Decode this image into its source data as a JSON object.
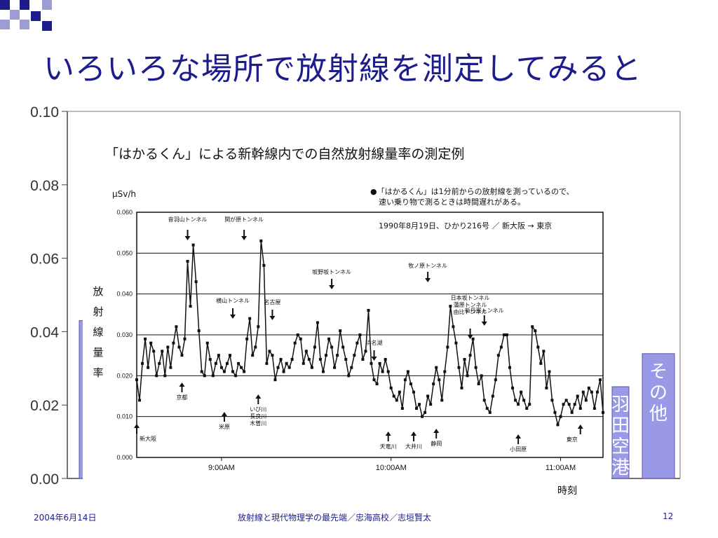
{
  "slide": {
    "title": "いろいろな場所で放射線を測定してみると",
    "footer_date": "2004年6月14日",
    "footer_center": "放射線と現代物理学の最先端／忠海高校／志垣賢太",
    "page_number": "12",
    "accent_color": "#1c1c8c",
    "deco_colors": [
      "#1c1c8c",
      "#9d9dd6"
    ]
  },
  "chart_data": [
    {
      "type": "bar",
      "role": "background chart",
      "ylim": [
        0,
        0.1
      ],
      "yticks": [
        "0.00",
        "0.02",
        "0.04",
        "0.06",
        "0.08",
        "0.10"
      ],
      "bars": [
        {
          "value": 0.043,
          "label": ""
        },
        {
          "value": 0.025,
          "label": "羽田空港"
        },
        {
          "value": 0.034,
          "label": "その他"
        }
      ],
      "bar_color": "#9999e6",
      "grid": false
    },
    {
      "type": "line",
      "title": "「はかるくん」による新幹線内での自然放射線量率の測定例",
      "ylabel": "放射線量率",
      "yunit": "μSv/h",
      "xlabel": "時刻",
      "note_lines": [
        "●「はかるくん」は1分前からの放射線を測っているので、",
        "速い乗り物で測るときは時間遅れがある。"
      ],
      "run_label": "1990年8月19日、ひかり216号 ／ 新大阪 → 東京",
      "ylim": [
        0,
        0.06
      ],
      "yticks": [
        "0.000",
        "0.010",
        "0.020",
        "0.030",
        "0.040",
        "0.050",
        "0.060"
      ],
      "xlim": [
        "08:30",
        "11:15"
      ],
      "xticks": [
        {
          "time": "09:00",
          "label": "9:00AM"
        },
        {
          "time": "10:00",
          "label": "10:00AM"
        },
        {
          "time": "11:00",
          "label": "11:00AM"
        }
      ],
      "grid": true,
      "series": [
        {
          "points": [
            [
              "08:30",
              0.019
            ],
            [
              "08:31",
              0.014
            ],
            [
              "08:32",
              0.023
            ],
            [
              "08:33",
              0.029
            ],
            [
              "08:34",
              0.022
            ],
            [
              "08:35",
              0.028
            ],
            [
              "08:36",
              0.026
            ],
            [
              "08:37",
              0.02
            ],
            [
              "08:38",
              0.023
            ],
            [
              "08:39",
              0.026
            ],
            [
              "08:40",
              0.02
            ],
            [
              "08:41",
              0.027
            ],
            [
              "08:42",
              0.022
            ],
            [
              "08:43",
              0.028
            ],
            [
              "08:44",
              0.032
            ],
            [
              "08:45",
              0.027
            ],
            [
              "08:46",
              0.025
            ],
            [
              "08:47",
              0.029
            ],
            [
              "08:48",
              0.048
            ],
            [
              "08:49",
              0.037
            ],
            [
              "08:50",
              0.052
            ],
            [
              "08:51",
              0.043
            ],
            [
              "08:52",
              0.031
            ],
            [
              "08:53",
              0.021
            ],
            [
              "08:54",
              0.02
            ],
            [
              "08:55",
              0.028
            ],
            [
              "08:56",
              0.024
            ],
            [
              "08:57",
              0.02
            ],
            [
              "08:58",
              0.023
            ],
            [
              "08:59",
              0.025
            ],
            [
              "09:00",
              0.022
            ],
            [
              "09:01",
              0.021
            ],
            [
              "09:02",
              0.023
            ],
            [
              "09:03",
              0.025
            ],
            [
              "09:04",
              0.021
            ],
            [
              "09:05",
              0.02
            ],
            [
              "09:06",
              0.023
            ],
            [
              "09:07",
              0.022
            ],
            [
              "09:08",
              0.021
            ],
            [
              "09:09",
              0.029
            ],
            [
              "09:10",
              0.034
            ],
            [
              "09:11",
              0.025
            ],
            [
              "09:12",
              0.027
            ],
            [
              "09:13",
              0.032
            ],
            [
              "09:14",
              0.053
            ],
            [
              "09:15",
              0.047
            ],
            [
              "09:16",
              0.023
            ],
            [
              "09:17",
              0.026
            ],
            [
              "09:18",
              0.025
            ],
            [
              "09:19",
              0.019
            ],
            [
              "09:20",
              0.022
            ],
            [
              "09:21",
              0.024
            ],
            [
              "09:22",
              0.021
            ],
            [
              "09:23",
              0.023
            ],
            [
              "09:24",
              0.022
            ],
            [
              "09:25",
              0.024
            ],
            [
              "09:26",
              0.028
            ],
            [
              "09:27",
              0.03
            ],
            [
              "09:28",
              0.029
            ],
            [
              "09:29",
              0.023
            ],
            [
              "09:30",
              0.026
            ],
            [
              "09:31",
              0.024
            ],
            [
              "09:32",
              0.022
            ],
            [
              "09:33",
              0.027
            ],
            [
              "09:34",
              0.033
            ],
            [
              "09:35",
              0.024
            ],
            [
              "09:36",
              0.021
            ],
            [
              "09:37",
              0.025
            ],
            [
              "09:38",
              0.029
            ],
            [
              "09:39",
              0.027
            ],
            [
              "09:40",
              0.022
            ],
            [
              "09:41",
              0.025
            ],
            [
              "09:42",
              0.031
            ],
            [
              "09:43",
              0.027
            ],
            [
              "09:44",
              0.024
            ],
            [
              "09:45",
              0.02
            ],
            [
              "09:46",
              0.022
            ],
            [
              "09:47",
              0.025
            ],
            [
              "09:48",
              0.028
            ],
            [
              "09:49",
              0.03
            ],
            [
              "09:50",
              0.024
            ],
            [
              "09:51",
              0.026
            ],
            [
              "09:52",
              0.036
            ],
            [
              "09:53",
              0.023
            ],
            [
              "09:54",
              0.019
            ],
            [
              "09:55",
              0.018
            ],
            [
              "09:56",
              0.023
            ],
            [
              "09:57",
              0.021
            ],
            [
              "09:58",
              0.024
            ],
            [
              "09:59",
              0.021
            ],
            [
              "10:00",
              0.017
            ],
            [
              "10:01",
              0.015
            ],
            [
              "10:02",
              0.014
            ],
            [
              "10:03",
              0.016
            ],
            [
              "10:04",
              0.012
            ],
            [
              "10:05",
              0.019
            ],
            [
              "10:06",
              0.021
            ],
            [
              "10:07",
              0.018
            ],
            [
              "10:08",
              0.016
            ],
            [
              "10:09",
              0.012
            ],
            [
              "10:10",
              0.013
            ],
            [
              "10:11",
              0.01
            ],
            [
              "10:12",
              0.011
            ],
            [
              "10:13",
              0.015
            ],
            [
              "10:14",
              0.013
            ],
            [
              "10:15",
              0.018
            ],
            [
              "10:16",
              0.022
            ],
            [
              "10:17",
              0.019
            ],
            [
              "10:18",
              0.014
            ],
            [
              "10:19",
              0.021
            ],
            [
              "10:20",
              0.027
            ],
            [
              "10:21",
              0.037
            ],
            [
              "10:22",
              0.032
            ],
            [
              "10:23",
              0.028
            ],
            [
              "10:24",
              0.022
            ],
            [
              "10:25",
              0.017
            ],
            [
              "10:26",
              0.024
            ],
            [
              "10:27",
              0.02
            ],
            [
              "10:28",
              0.025
            ],
            [
              "10:29",
              0.029
            ],
            [
              "10:30",
              0.022
            ],
            [
              "10:31",
              0.018
            ],
            [
              "10:32",
              0.02
            ],
            [
              "10:33",
              0.014
            ],
            [
              "10:34",
              0.012
            ],
            [
              "10:35",
              0.011
            ],
            [
              "10:36",
              0.015
            ],
            [
              "10:37",
              0.019
            ],
            [
              "10:38",
              0.025
            ],
            [
              "10:39",
              0.027
            ],
            [
              "10:40",
              0.03
            ],
            [
              "10:41",
              0.03
            ],
            [
              "10:42",
              0.022
            ],
            [
              "10:43",
              0.017
            ],
            [
              "10:44",
              0.014
            ],
            [
              "10:45",
              0.013
            ],
            [
              "10:46",
              0.016
            ],
            [
              "10:47",
              0.014
            ],
            [
              "10:48",
              0.012
            ],
            [
              "10:49",
              0.013
            ],
            [
              "10:50",
              0.032
            ],
            [
              "10:51",
              0.031
            ],
            [
              "10:52",
              0.027
            ],
            [
              "10:53",
              0.023
            ],
            [
              "10:54",
              0.026
            ],
            [
              "10:55",
              0.017
            ],
            [
              "10:56",
              0.021
            ],
            [
              "10:57",
              0.014
            ],
            [
              "10:58",
              0.011
            ],
            [
              "10:59",
              0.008
            ],
            [
              "11:00",
              0.01
            ],
            [
              "11:01",
              0.013
            ],
            [
              "11:02",
              0.014
            ],
            [
              "11:03",
              0.013
            ],
            [
              "11:04",
              0.011
            ],
            [
              "11:05",
              0.013
            ],
            [
              "11:06",
              0.015
            ],
            [
              "11:07",
              0.012
            ],
            [
              "11:08",
              0.016
            ],
            [
              "11:09",
              0.014
            ],
            [
              "11:10",
              0.017
            ],
            [
              "11:11",
              0.016
            ],
            [
              "11:12",
              0.012
            ],
            [
              "11:13",
              0.016
            ],
            [
              "11:14",
              0.019
            ],
            [
              "11:15",
              0.011
            ]
          ]
        }
      ],
      "annotations": [
        {
          "label": "新大阪",
          "time": "08:30",
          "arrow": "up"
        },
        {
          "label": "京都",
          "time": "08:46",
          "arrow": "up"
        },
        {
          "label": "音羽山トンネル",
          "time": "08:48",
          "arrow": "down"
        },
        {
          "label": "米原",
          "time": "09:01",
          "arrow": "up"
        },
        {
          "label": "横山トンネル",
          "time": "09:04",
          "arrow": "down"
        },
        {
          "label": "関が原トンネル",
          "time": "09:08",
          "arrow": "down"
        },
        {
          "label": "いび川\n長良川\n木曽川",
          "time": "09:13",
          "arrow": "up"
        },
        {
          "label": "名古屋",
          "time": "09:18",
          "arrow": "down"
        },
        {
          "label": "坂野坂トンネル",
          "time": "09:39",
          "arrow": "down"
        },
        {
          "label": "浜名湖",
          "time": "09:54",
          "arrow": "down"
        },
        {
          "label": "天竜川",
          "time": "09:59",
          "arrow": "up"
        },
        {
          "label": "大井川",
          "time": "10:08",
          "arrow": "up"
        },
        {
          "label": "牧ノ原トンネル",
          "time": "10:13",
          "arrow": "down"
        },
        {
          "label": "静岡",
          "time": "10:16",
          "arrow": "up"
        },
        {
          "label": "日本坂トンネル\n蒲原トンネル\n由比トンネル",
          "time": "10:28",
          "arrow": "down"
        },
        {
          "label": "新丹那トンネル",
          "time": "10:33",
          "arrow": "down"
        },
        {
          "label": "小田原",
          "time": "10:45",
          "arrow": "up"
        },
        {
          "label": "東京",
          "time": "11:07",
          "arrow": "up"
        }
      ],
      "line_color": "#111111"
    }
  ]
}
